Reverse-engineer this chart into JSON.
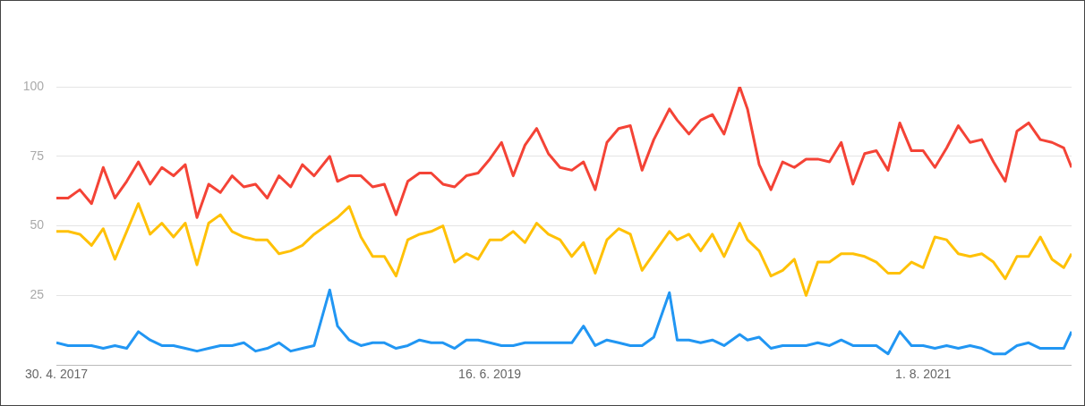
{
  "chart_data": {
    "type": "line",
    "marker": "none",
    "grid": "y",
    "x": [
      "2017-04-30",
      "2017-05-21",
      "2017-06-11",
      "2017-07-02",
      "2017-07-23",
      "2017-08-13",
      "2017-09-03",
      "2017-09-24",
      "2017-10-15",
      "2017-11-05",
      "2017-11-26",
      "2017-12-17",
      "2018-01-07",
      "2018-01-28",
      "2018-02-18",
      "2018-03-11",
      "2018-04-01",
      "2018-04-22",
      "2018-05-13",
      "2018-06-03",
      "2018-06-24",
      "2018-07-15",
      "2018-08-05",
      "2018-09-02",
      "2018-09-16",
      "2018-10-07",
      "2018-10-28",
      "2018-11-18",
      "2018-12-09",
      "2018-12-30",
      "2019-01-20",
      "2019-02-10",
      "2019-03-03",
      "2019-03-24",
      "2019-04-14",
      "2019-05-05",
      "2019-05-26",
      "2019-06-16",
      "2019-07-07",
      "2019-07-28",
      "2019-08-18",
      "2019-09-08",
      "2019-09-29",
      "2019-10-20",
      "2019-11-10",
      "2019-12-01",
      "2019-12-22",
      "2020-01-12",
      "2020-02-02",
      "2020-02-23",
      "2020-03-15",
      "2020-04-05",
      "2020-05-03",
      "2020-05-17",
      "2020-06-07",
      "2020-06-28",
      "2020-07-19",
      "2020-08-09",
      "2020-09-06",
      "2020-09-20",
      "2020-10-11",
      "2020-11-01",
      "2020-11-22",
      "2020-12-13",
      "2021-01-03",
      "2021-01-24",
      "2021-02-14",
      "2021-03-07",
      "2021-03-28",
      "2021-04-18",
      "2021-05-09",
      "2021-05-30",
      "2021-06-20",
      "2021-07-11",
      "2021-08-01",
      "2021-08-22",
      "2021-09-12",
      "2021-10-03",
      "2021-10-24",
      "2021-11-14",
      "2021-12-05",
      "2021-12-26",
      "2022-01-16",
      "2022-02-06",
      "2022-02-27",
      "2022-03-20",
      "2022-04-10",
      "2022-04-24"
    ],
    "series": [
      {
        "color": "#2196f3",
        "values": [
          8,
          7,
          7,
          7,
          6,
          7,
          6,
          12,
          9,
          7,
          7,
          6,
          5,
          6,
          7,
          7,
          8,
          5,
          6,
          8,
          5,
          6,
          7,
          27,
          14,
          9,
          7,
          8,
          8,
          6,
          7,
          9,
          8,
          8,
          6,
          9,
          9,
          8,
          7,
          7,
          8,
          8,
          8,
          8,
          8,
          14,
          7,
          9,
          8,
          7,
          7,
          10,
          26,
          9,
          9,
          8,
          9,
          7,
          11,
          9,
          10,
          6,
          7,
          7,
          7,
          8,
          7,
          9,
          7,
          7,
          7,
          4,
          12,
          7,
          7,
          6,
          7,
          6,
          7,
          6,
          4,
          4,
          7,
          8,
          6,
          6,
          6,
          12
        ]
      },
      {
        "color": "#f44336",
        "values": [
          60,
          60,
          63,
          58,
          71,
          60,
          66,
          73,
          65,
          71,
          68,
          72,
          53,
          65,
          62,
          68,
          64,
          65,
          60,
          68,
          64,
          72,
          68,
          75,
          66,
          68,
          68,
          64,
          65,
          54,
          66,
          69,
          69,
          65,
          64,
          68,
          69,
          74,
          80,
          68,
          79,
          85,
          76,
          71,
          70,
          73,
          63,
          80,
          85,
          86,
          70,
          81,
          92,
          88,
          83,
          88,
          90,
          83,
          100,
          92,
          72,
          63,
          73,
          71,
          74,
          74,
          73,
          80,
          65,
          76,
          77,
          70,
          87,
          77,
          77,
          71,
          78,
          86,
          80,
          81,
          73,
          66,
          84,
          87,
          81,
          80,
          78,
          71
        ]
      },
      {
        "color": "#ffc107",
        "values": [
          48,
          48,
          47,
          43,
          49,
          38,
          48,
          58,
          47,
          51,
          46,
          51,
          36,
          51,
          54,
          48,
          46,
          45,
          45,
          40,
          41,
          43,
          47,
          51,
          53,
          57,
          46,
          39,
          39,
          32,
          45,
          47,
          48,
          50,
          37,
          40,
          38,
          45,
          45,
          48,
          44,
          51,
          47,
          45,
          39,
          44,
          33,
          45,
          49,
          47,
          34,
          40,
          48,
          45,
          47,
          41,
          47,
          39,
          51,
          45,
          41,
          32,
          34,
          38,
          25,
          37,
          37,
          40,
          40,
          39,
          37,
          33,
          33,
          37,
          35,
          46,
          45,
          40,
          39,
          40,
          37,
          31,
          39,
          39,
          46,
          38,
          35,
          40
        ]
      }
    ],
    "xlim": [
      "2017-04-30",
      "2022-04-24"
    ],
    "xticks": [
      {
        "value": "2017-04-30",
        "label": "30. 4. 2017"
      },
      {
        "value": "2019-06-16",
        "label": "16. 6. 2019"
      },
      {
        "value": "2021-08-01",
        "label": "1. 8. 2021"
      }
    ],
    "ylim": [
      0,
      100
    ],
    "yticks": [
      {
        "value": 0,
        "label": null
      },
      25,
      50,
      75,
      100
    ]
  }
}
